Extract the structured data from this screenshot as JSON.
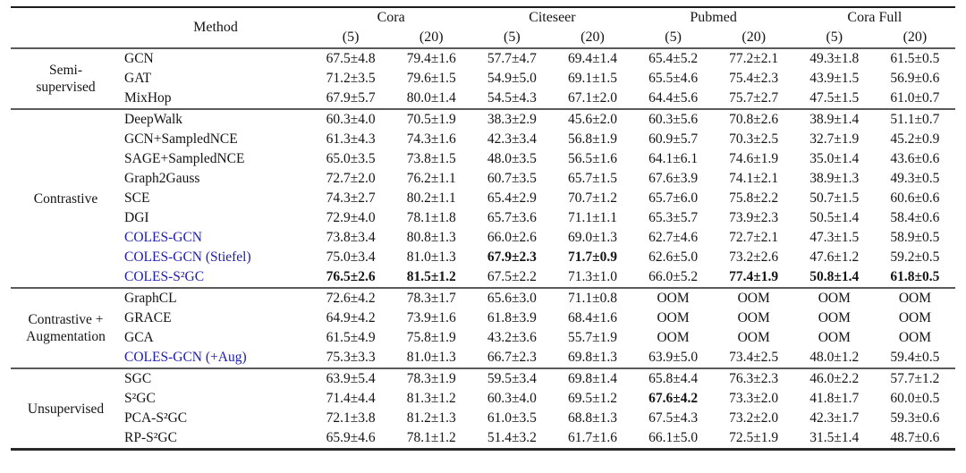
{
  "table": {
    "header": {
      "method": "Method",
      "datasets": [
        "Cora",
        "Citeseer",
        "Pubmed",
        "Cora Full"
      ],
      "sub_headers": [
        "(5)",
        "(20)",
        "(5)",
        "(20)",
        "(5)",
        "(20)",
        "(5)",
        "(20)"
      ]
    },
    "colors": {
      "highlight_method_blue": "#1c1cae",
      "text": "#141414"
    },
    "groups": [
      {
        "label": "Semi-\nsupervised",
        "rows": [
          {
            "method": "GCN",
            "blue": false,
            "bold": [],
            "values": [
              "67.5±4.8",
              "79.4±1.6",
              "57.7±4.7",
              "69.4±1.4",
              "65.4±5.2",
              "77.2±2.1",
              "49.3±1.8",
              "61.5±0.5"
            ]
          },
          {
            "method": "GAT",
            "blue": false,
            "bold": [],
            "values": [
              "71.2±3.5",
              "79.6±1.5",
              "54.9±5.0",
              "69.1±1.5",
              "65.5±4.6",
              "75.4±2.3",
              "43.9±1.5",
              "56.9±0.6"
            ]
          },
          {
            "method": "MixHop",
            "blue": false,
            "bold": [],
            "values": [
              "67.9±5.7",
              "80.0±1.4",
              "54.5±4.3",
              "67.1±2.0",
              "64.4±5.6",
              "75.7±2.7",
              "47.5±1.5",
              "61.0±0.7"
            ]
          }
        ]
      },
      {
        "label": "Contrastive",
        "rows": [
          {
            "method": "DeepWalk",
            "blue": false,
            "bold": [],
            "values": [
              "60.3±4.0",
              "70.5±1.9",
              "38.3±2.9",
              "45.6±2.0",
              "60.3±5.6",
              "70.8±2.6",
              "38.9±1.4",
              "51.1±0.7"
            ]
          },
          {
            "method": "GCN+SampledNCE",
            "blue": false,
            "bold": [],
            "values": [
              "61.3±4.3",
              "74.3±1.6",
              "42.3±3.4",
              "56.8±1.9",
              "60.9±5.7",
              "70.3±2.5",
              "32.7±1.9",
              "45.2±0.9"
            ]
          },
          {
            "method": "SAGE+SampledNCE",
            "blue": false,
            "bold": [],
            "values": [
              "65.0±3.5",
              "73.8±1.5",
              "48.0±3.5",
              "56.5±1.6",
              "64.1±6.1",
              "74.6±1.9",
              "35.0±1.4",
              "43.6±0.6"
            ]
          },
          {
            "method": "Graph2Gauss",
            "blue": false,
            "bold": [],
            "values": [
              "72.7±2.0",
              "76.2±1.1",
              "60.7±3.5",
              "65.7±1.5",
              "67.6±3.9",
              "74.1±2.1",
              "38.9±1.3",
              "49.3±0.5"
            ]
          },
          {
            "method": "SCE",
            "blue": false,
            "bold": [],
            "values": [
              "74.3±2.7",
              "80.2±1.1",
              "65.4±2.9",
              "70.7±1.2",
              "65.7±6.0",
              "75.8±2.2",
              "50.7±1.5",
              "60.6±0.6"
            ]
          },
          {
            "method": "DGI",
            "blue": false,
            "bold": [],
            "values": [
              "72.9±4.0",
              "78.1±1.8",
              "65.7±3.6",
              "71.1±1.1",
              "65.3±5.7",
              "73.9±2.3",
              "50.5±1.4",
              "58.4±0.6"
            ]
          },
          {
            "method": "COLES-GCN",
            "blue": true,
            "bold": [],
            "values": [
              "73.8±3.4",
              "80.8±1.3",
              "66.0±2.6",
              "69.0±1.3",
              "62.7±4.6",
              "72.7±2.1",
              "47.3±1.5",
              "58.9±0.5"
            ]
          },
          {
            "method": "COLES-GCN (Stiefel)",
            "blue": true,
            "bold": [
              2,
              3
            ],
            "values": [
              "75.0±3.4",
              "81.0±1.3",
              "67.9±2.3",
              "71.7±0.9",
              "62.6±5.0",
              "73.2±2.6",
              "47.6±1.2",
              "59.2±0.5"
            ]
          },
          {
            "method": "COLES-S²GC",
            "blue": true,
            "bold": [
              0,
              1,
              5,
              6,
              7
            ],
            "values": [
              "76.5±2.6",
              "81.5±1.2",
              "67.5±2.2",
              "71.3±1.0",
              "66.0±5.2",
              "77.4±1.9",
              "50.8±1.4",
              "61.8±0.5"
            ]
          }
        ]
      },
      {
        "label": "Contrastive +\nAugmentation",
        "rows": [
          {
            "method": "GraphCL",
            "blue": false,
            "bold": [],
            "values": [
              "72.6±4.2",
              "78.3±1.7",
              "65.6±3.0",
              "71.1±0.8",
              "OOM",
              "OOM",
              "OOM",
              "OOM"
            ]
          },
          {
            "method": "GRACE",
            "blue": false,
            "bold": [],
            "values": [
              "64.9±4.2",
              "73.9±1.6",
              "61.8±3.9",
              "68.4±1.6",
              "OOM",
              "OOM",
              "OOM",
              "OOM"
            ]
          },
          {
            "method": "GCA",
            "blue": false,
            "bold": [],
            "values": [
              "61.5±4.9",
              "75.8±1.9",
              "43.2±3.6",
              "55.7±1.9",
              "OOM",
              "OOM",
              "OOM",
              "OOM"
            ]
          },
          {
            "method": "COLES-GCN (+Aug)",
            "blue": true,
            "bold": [],
            "values": [
              "75.3±3.3",
              "81.0±1.3",
              "66.7±2.3",
              "69.8±1.3",
              "63.9±5.0",
              "73.4±2.5",
              "48.0±1.2",
              "59.4±0.5"
            ]
          }
        ]
      },
      {
        "label": "Unsupervised",
        "rows": [
          {
            "method": "SGC",
            "blue": false,
            "bold": [],
            "values": [
              "63.9±5.4",
              "78.3±1.9",
              "59.5±3.4",
              "69.8±1.4",
              "65.8±4.4",
              "76.3±2.3",
              "46.0±2.2",
              "57.7±1.2"
            ]
          },
          {
            "method": "S²GC",
            "blue": false,
            "bold": [
              4
            ],
            "values": [
              "71.4±4.4",
              "81.3±1.2",
              "60.3±4.0",
              "69.5±1.2",
              "67.6±4.2",
              "73.3±2.0",
              "41.8±1.7",
              "60.0±0.5"
            ]
          },
          {
            "method": "PCA-S²GC",
            "blue": false,
            "bold": [],
            "values": [
              "72.1±3.8",
              "81.2±1.3",
              "61.0±3.5",
              "68.8±1.3",
              "67.5±4.3",
              "73.2±2.0",
              "42.3±1.7",
              "59.3±0.6"
            ]
          },
          {
            "method": "RP-S²GC",
            "blue": false,
            "bold": [],
            "values": [
              "65.9±4.6",
              "78.1±1.2",
              "51.4±3.2",
              "61.7±1.6",
              "66.1±5.0",
              "72.5±1.9",
              "31.5±1.4",
              "48.7±0.6"
            ]
          }
        ]
      }
    ]
  }
}
